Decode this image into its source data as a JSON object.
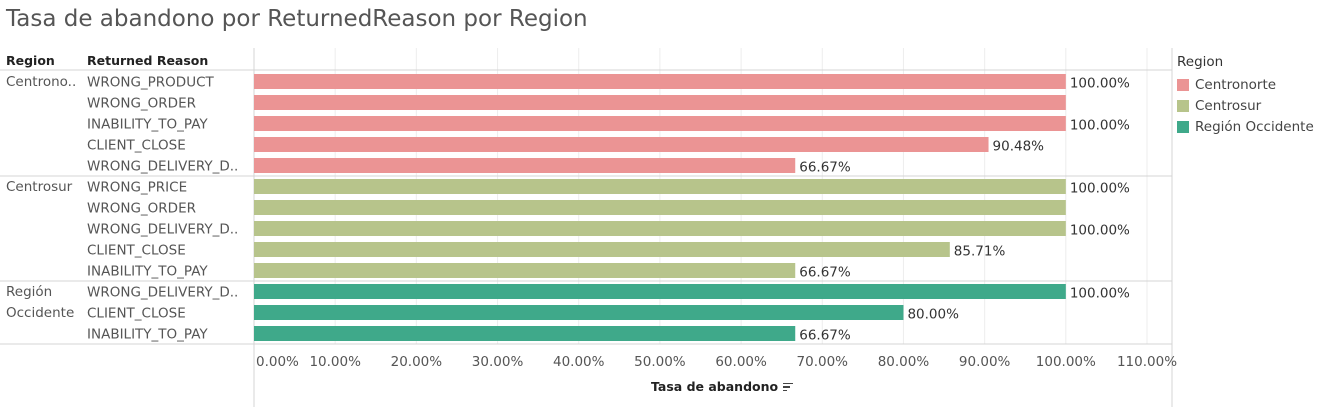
{
  "title": "Tasa de abandono por ReturnedReason por Region",
  "headers": {
    "region": "Region",
    "reason": "Returned Reason"
  },
  "axis_title": "Tasa de abandono",
  "legend": {
    "title": "Region",
    "items": [
      {
        "label": "Centronorte",
        "color": "#EB9494"
      },
      {
        "label": "Centrosur",
        "color": "#B7C48B"
      },
      {
        "label": "Región Occidente",
        "color": "#3FA98A"
      }
    ]
  },
  "chart_data": {
    "type": "bar",
    "orientation": "horizontal",
    "title": "Tasa de abandono por ReturnedReason por Region",
    "xlabel": "Tasa de abandono",
    "xlim": [
      0,
      110
    ],
    "x_ticks": [
      "0.00%",
      "10.00%",
      "20.00%",
      "30.00%",
      "40.00%",
      "50.00%",
      "60.00%",
      "70.00%",
      "80.00%",
      "90.00%",
      "100.00%",
      "110.00%"
    ],
    "groups": [
      {
        "region": "Centronorte",
        "region_display": "Centrono..",
        "color": "#EB9494",
        "bars": [
          {
            "reason": "WRONG_PRODUCT",
            "value": 100.0,
            "label": "100.00%"
          },
          {
            "reason": "WRONG_ORDER",
            "value": 100.0,
            "label": ""
          },
          {
            "reason": "INABILITY_TO_PAY",
            "value": 100.0,
            "label": "100.00%"
          },
          {
            "reason": "CLIENT_CLOSE",
            "value": 90.48,
            "label": "90.48%"
          },
          {
            "reason": "WRONG_DELIVERY_D..",
            "value": 66.67,
            "label": "66.67%"
          }
        ]
      },
      {
        "region": "Centrosur",
        "region_display": "Centrosur",
        "color": "#B7C48B",
        "bars": [
          {
            "reason": "WRONG_PRICE",
            "value": 100.0,
            "label": "100.00%"
          },
          {
            "reason": "WRONG_ORDER",
            "value": 100.0,
            "label": ""
          },
          {
            "reason": "WRONG_DELIVERY_D..",
            "value": 100.0,
            "label": "100.00%"
          },
          {
            "reason": "CLIENT_CLOSE",
            "value": 85.71,
            "label": "85.71%"
          },
          {
            "reason": "INABILITY_TO_PAY",
            "value": 66.67,
            "label": "66.67%"
          }
        ]
      },
      {
        "region": "Región Occidente",
        "region_display": "Región\nOccidente",
        "color": "#3FA98A",
        "bars": [
          {
            "reason": "WRONG_DELIVERY_D..",
            "value": 100.0,
            "label": "100.00%"
          },
          {
            "reason": "CLIENT_CLOSE",
            "value": 80.0,
            "label": "80.00%"
          },
          {
            "reason": "INABILITY_TO_PAY",
            "value": 66.67,
            "label": "66.67%"
          }
        ]
      }
    ]
  }
}
